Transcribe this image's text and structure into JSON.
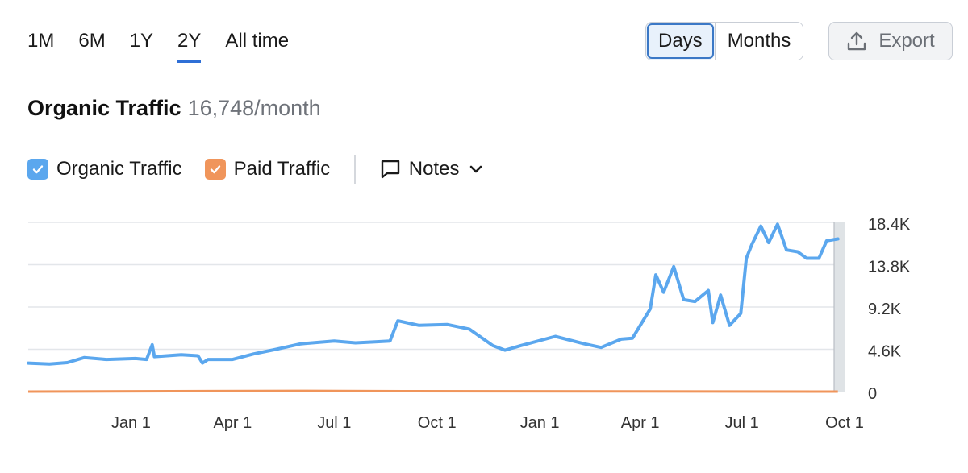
{
  "range_tabs": [
    {
      "label": "1M",
      "active": false
    },
    {
      "label": "6M",
      "active": false
    },
    {
      "label": "1Y",
      "active": false
    },
    {
      "label": "2Y",
      "active": true
    },
    {
      "label": "All time",
      "active": false
    }
  ],
  "view_toggle": {
    "days": "Days",
    "months": "Months",
    "selected": "Days"
  },
  "export_label": "Export",
  "export_icon": "upload-icon",
  "title": {
    "main": "Organic Traffic",
    "value": "16,748/month"
  },
  "legend": {
    "organic": {
      "label": "Organic Traffic",
      "color": "#5ba7ee",
      "checked": true
    },
    "paid": {
      "label": "Paid Traffic",
      "color": "#f0955b",
      "checked": true
    },
    "notes_label": "Notes",
    "notes_icon": "comment-icon"
  },
  "chart_data": {
    "type": "line",
    "x_start": "2023-10-01",
    "x_end": "2025-10-01",
    "x_tick_labels": [
      "Jan 1",
      "Apr 1",
      "Jul 1",
      "Oct 1",
      "Jan 1",
      "Apr 1",
      "Jul 1",
      "Oct 1"
    ],
    "x_tick_dates": [
      "2024-01-01",
      "2024-04-01",
      "2024-07-01",
      "2024-10-01",
      "2025-01-01",
      "2025-04-01",
      "2025-07-01",
      "2025-10-01"
    ],
    "y_tick_labels": [
      "0",
      "4.6K",
      "9.2K",
      "13.8K",
      "18.4K"
    ],
    "y_ticks": [
      0,
      4600,
      9200,
      13800,
      18400
    ],
    "ylim": [
      0,
      18400
    ],
    "grid": true,
    "y_axis_side": "right",
    "series": [
      {
        "name": "Organic Traffic",
        "color": "#5ba7ee",
        "points": [
          [
            "2023-10-01",
            3100
          ],
          [
            "2023-10-20",
            3000
          ],
          [
            "2023-11-05",
            3150
          ],
          [
            "2023-11-20",
            3700
          ],
          [
            "2023-12-10",
            3500
          ],
          [
            "2024-01-05",
            3600
          ],
          [
            "2024-01-15",
            3500
          ],
          [
            "2024-01-20",
            5100
          ],
          [
            "2024-01-22",
            3800
          ],
          [
            "2024-02-15",
            4000
          ],
          [
            "2024-03-01",
            3900
          ],
          [
            "2024-03-05",
            3100
          ],
          [
            "2024-03-10",
            3500
          ],
          [
            "2024-04-01",
            3500
          ],
          [
            "2024-04-20",
            4100
          ],
          [
            "2024-05-10",
            4600
          ],
          [
            "2024-06-01",
            5200
          ],
          [
            "2024-07-01",
            5500
          ],
          [
            "2024-07-20",
            5300
          ],
          [
            "2024-08-05",
            5400
          ],
          [
            "2024-08-20",
            5500
          ],
          [
            "2024-08-27",
            7700
          ],
          [
            "2024-09-15",
            7200
          ],
          [
            "2024-10-10",
            7300
          ],
          [
            "2024-10-30",
            6800
          ],
          [
            "2024-11-20",
            5000
          ],
          [
            "2024-12-01",
            4500
          ],
          [
            "2024-12-15",
            5000
          ],
          [
            "2025-01-15",
            6000
          ],
          [
            "2025-02-10",
            5200
          ],
          [
            "2025-02-25",
            4800
          ],
          [
            "2025-03-15",
            5700
          ],
          [
            "2025-03-25",
            5800
          ],
          [
            "2025-04-01",
            7200
          ],
          [
            "2025-04-10",
            9000
          ],
          [
            "2025-04-15",
            12700
          ],
          [
            "2025-04-22",
            10800
          ],
          [
            "2025-05-01",
            13600
          ],
          [
            "2025-05-10",
            10000
          ],
          [
            "2025-05-20",
            9800
          ],
          [
            "2025-06-01",
            11000
          ],
          [
            "2025-06-05",
            7500
          ],
          [
            "2025-06-12",
            10500
          ],
          [
            "2025-06-20",
            7200
          ],
          [
            "2025-06-30",
            8500
          ],
          [
            "2025-07-05",
            14500
          ],
          [
            "2025-07-10",
            16000
          ],
          [
            "2025-07-18",
            18000
          ],
          [
            "2025-07-25",
            16200
          ],
          [
            "2025-08-02",
            18200
          ],
          [
            "2025-08-10",
            15400
          ],
          [
            "2025-08-20",
            15200
          ],
          [
            "2025-08-28",
            14500
          ],
          [
            "2025-09-08",
            14500
          ],
          [
            "2025-09-15",
            16400
          ],
          [
            "2025-09-25",
            16600
          ]
        ]
      },
      {
        "name": "Paid Traffic",
        "color": "#f0955b",
        "points": [
          [
            "2023-10-01",
            0
          ],
          [
            "2024-06-01",
            80
          ],
          [
            "2024-09-01",
            40
          ],
          [
            "2025-09-25",
            0
          ]
        ]
      }
    ]
  }
}
